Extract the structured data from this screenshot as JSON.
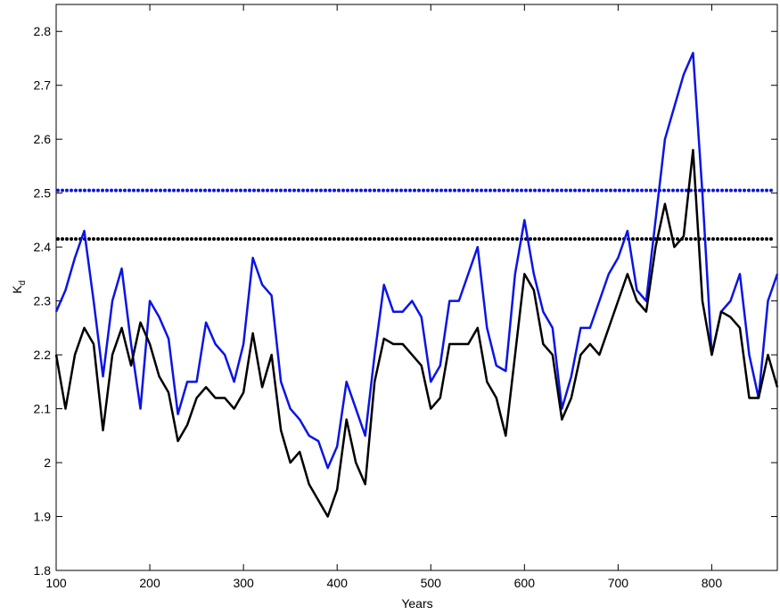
{
  "chart_data": {
    "type": "line",
    "xlabel": "Years",
    "ylabel": "K",
    "ylabel_sub": "d",
    "x": [
      100,
      110,
      120,
      130,
      140,
      150,
      160,
      170,
      180,
      190,
      200,
      210,
      220,
      230,
      240,
      250,
      260,
      270,
      280,
      290,
      300,
      310,
      320,
      330,
      340,
      350,
      360,
      370,
      380,
      390,
      400,
      410,
      420,
      430,
      440,
      450,
      460,
      470,
      480,
      490,
      500,
      510,
      520,
      530,
      540,
      550,
      560,
      570,
      580,
      590,
      600,
      610,
      620,
      630,
      640,
      650,
      660,
      670,
      680,
      690,
      700,
      710,
      720,
      730,
      740,
      750,
      760,
      770,
      780,
      790,
      800,
      810,
      820,
      830,
      840,
      850,
      860,
      870
    ],
    "series": [
      {
        "color": "#0a14e6",
        "values": [
          2.28,
          2.32,
          2.38,
          2.43,
          2.3,
          2.16,
          2.3,
          2.36,
          2.22,
          2.1,
          2.3,
          2.27,
          2.23,
          2.09,
          2.15,
          2.15,
          2.26,
          2.22,
          2.2,
          2.15,
          2.22,
          2.38,
          2.33,
          2.31,
          2.15,
          2.1,
          2.08,
          2.05,
          2.04,
          1.99,
          2.03,
          2.15,
          2.1,
          2.05,
          2.2,
          2.33,
          2.28,
          2.28,
          2.3,
          2.27,
          2.15,
          2.18,
          2.3,
          2.3,
          2.35,
          2.4,
          2.25,
          2.18,
          2.17,
          2.35,
          2.45,
          2.35,
          2.28,
          2.25,
          2.1,
          2.16,
          2.25,
          2.25,
          2.3,
          2.35,
          2.38,
          2.43,
          2.32,
          2.3,
          2.45,
          2.6,
          2.66,
          2.72,
          2.76,
          2.5,
          2.2,
          2.28,
          2.3,
          2.35,
          2.2,
          2.12,
          2.3,
          2.35
        ]
      },
      {
        "color": "#000000",
        "values": [
          2.2,
          2.1,
          2.2,
          2.25,
          2.22,
          2.06,
          2.2,
          2.25,
          2.18,
          2.26,
          2.22,
          2.16,
          2.13,
          2.04,
          2.07,
          2.12,
          2.14,
          2.12,
          2.12,
          2.1,
          2.13,
          2.24,
          2.14,
          2.2,
          2.06,
          2.0,
          2.02,
          1.96,
          1.93,
          1.9,
          1.95,
          2.08,
          2.0,
          1.96,
          2.15,
          2.23,
          2.22,
          2.22,
          2.2,
          2.18,
          2.1,
          2.12,
          2.22,
          2.22,
          2.22,
          2.25,
          2.15,
          2.12,
          2.05,
          2.2,
          2.35,
          2.32,
          2.22,
          2.2,
          2.08,
          2.12,
          2.2,
          2.22,
          2.2,
          2.25,
          2.3,
          2.35,
          2.3,
          2.28,
          2.4,
          2.48,
          2.4,
          2.42,
          2.58,
          2.3,
          2.2,
          2.28,
          2.27,
          2.25,
          2.12,
          2.12,
          2.2,
          2.14
        ]
      }
    ],
    "hlines": [
      {
        "value": 2.505,
        "color": "#0a14e6"
      },
      {
        "value": 2.415,
        "color": "#000000"
      }
    ],
    "xlim": [
      100,
      870
    ],
    "xticks": [
      100,
      200,
      300,
      400,
      500,
      600,
      700,
      800
    ],
    "ylim": [
      1.8,
      2.85
    ],
    "yticks": [
      1.8,
      1.9,
      2,
      2.1,
      2.2,
      2.3,
      2.4,
      2.5,
      2.6,
      2.7,
      2.8
    ]
  }
}
